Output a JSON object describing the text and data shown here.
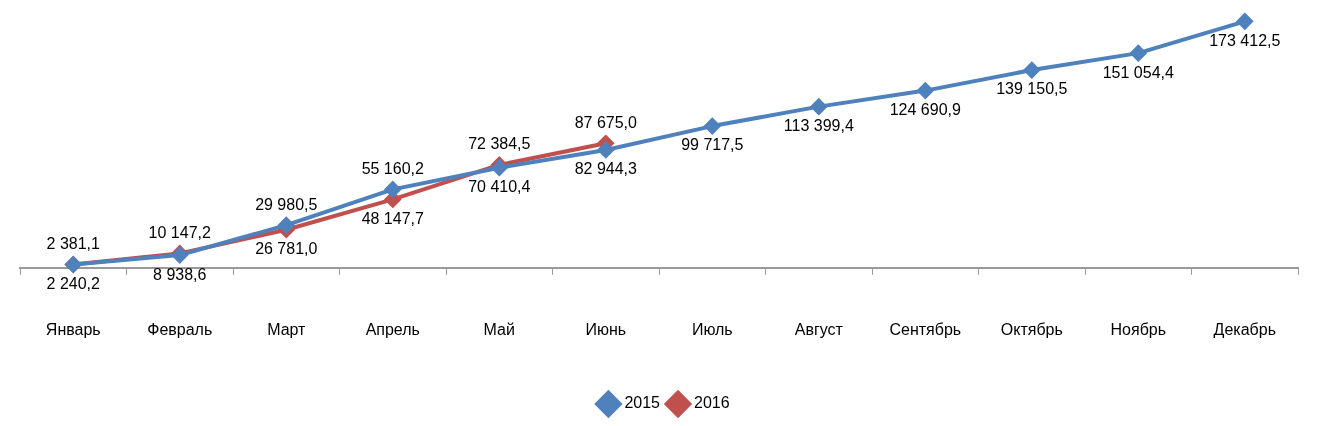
{
  "chart_data": {
    "type": "line",
    "categories": [
      "Январь",
      "Февраль",
      "Март",
      "Апрель",
      "Май",
      "Июнь",
      "Июль",
      "Август",
      "Сентябрь",
      "Октябрь",
      "Ноябрь",
      "Декабрь"
    ],
    "series": [
      {
        "name": "2015",
        "color": "#4f81bd",
        "values": [
          2240.2,
          8938.6,
          29980.5,
          55160.2,
          70410.4,
          82944.3,
          99717.5,
          113399.4,
          124690.9,
          139150.5,
          151054.4,
          173412.5
        ],
        "value_labels": [
          "2 240,2",
          "8 938,6",
          "29 980,5",
          "55 160,2",
          "70 410,4",
          "82 944,3",
          "99 717,5",
          "113 399,4",
          "124 690,9",
          "139 150,5",
          "151 054,4",
          "173 412,5"
        ]
      },
      {
        "name": "2016",
        "color": "#c0504d",
        "values": [
          2381.1,
          10147.2,
          26781.0,
          48147.7,
          72384.5,
          87675.0,
          null,
          null,
          null,
          null,
          null,
          null
        ],
        "value_labels": [
          "2 381,1",
          "10 147,2",
          "26 781,0",
          "48 147,7",
          "72 384,5",
          "87 675,0",
          null,
          null,
          null,
          null,
          null,
          null
        ]
      }
    ],
    "legend": "bottom",
    "marker": "diamond",
    "line_style": "solid"
  }
}
